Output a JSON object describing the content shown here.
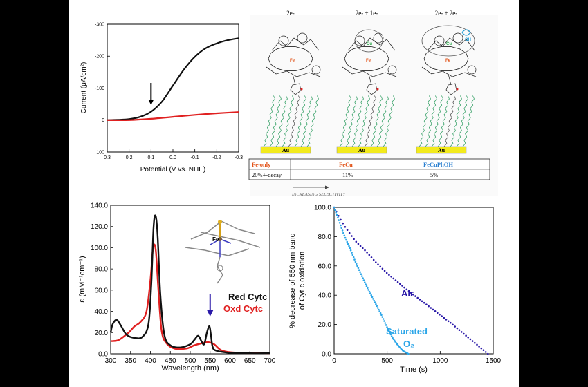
{
  "chart_data": [
    {
      "id": "lsv",
      "type": "line",
      "xlabel": "Potential (V vs. NHE)",
      "ylabel": "Current (μA/cm²)",
      "x_reversed": true,
      "y_reversed": true,
      "xlim": [
        0.3,
        -0.3
      ],
      "ylim": [
        100,
        -300
      ],
      "xticks": [
        "0.3",
        "0.2",
        "0.1",
        "0.0",
        "-0.1",
        "-0.2",
        "-0.3"
      ],
      "xtick_values": [
        0.3,
        0.2,
        0.1,
        0.0,
        -0.1,
        -0.2,
        -0.3
      ],
      "yticks": [
        "-300",
        "-200",
        "-100",
        "0",
        "100"
      ],
      "ytick_values": [
        -300,
        -200,
        -100,
        0,
        100
      ],
      "series": [
        {
          "color": "#111111",
          "x": [
            0.3,
            0.25,
            0.2,
            0.15,
            0.1,
            0.05,
            0.0,
            -0.05,
            -0.1,
            -0.15,
            -0.2,
            -0.25,
            -0.3
          ],
          "y": [
            0,
            -1,
            -3,
            -10,
            -26,
            -58,
            -108,
            -158,
            -198,
            -225,
            -240,
            -250,
            -256
          ]
        },
        {
          "color": "#e02020",
          "x": [
            0.3,
            0.2,
            0.1,
            0.0,
            -0.1,
            -0.2,
            -0.3
          ],
          "y": [
            0,
            0,
            -4,
            -10,
            -16,
            -21,
            -25
          ]
        }
      ],
      "annotation_arrow_x": 0.1
    },
    {
      "id": "uvvis",
      "type": "line",
      "xlabel": "Wavelength (nm)",
      "ylabel": "ε (mM⁻¹cm⁻¹)",
      "xlim": [
        300,
        700
      ],
      "ylim": [
        0,
        140
      ],
      "xticks": [
        "300",
        "350",
        "400",
        "450",
        "500",
        "550",
        "600",
        "650",
        "700"
      ],
      "xtick_values": [
        300,
        350,
        400,
        450,
        500,
        550,
        600,
        650,
        700
      ],
      "yticks": [
        "0.0",
        "20.0",
        "40.0",
        "60.0",
        "80.0",
        "100.0",
        "120.0",
        "140.0"
      ],
      "ytick_values": [
        0,
        20,
        40,
        60,
        80,
        100,
        120,
        140
      ],
      "series": [
        {
          "name": "Red Cytc",
          "color": "#111111",
          "x": [
            300,
            305,
            315,
            325,
            340,
            360,
            380,
            395,
            402,
            408,
            413,
            418,
            425,
            435,
            450,
            475,
            500,
            510,
            520,
            528,
            535,
            542,
            548,
            552,
            556,
            565,
            600,
            650,
            700
          ],
          "y": [
            20,
            28,
            32,
            27,
            18,
            15,
            16,
            28,
            65,
            120,
            130,
            112,
            55,
            18,
            8,
            6,
            9,
            13,
            17,
            12,
            9,
            20,
            26,
            18,
            7,
            3,
            1,
            0.5,
            0.5
          ]
        },
        {
          "name": "Oxd Cytc",
          "color": "#e02020",
          "x": [
            300,
            320,
            345,
            360,
            375,
            390,
            400,
            406,
            410,
            414,
            420,
            428,
            440,
            460,
            490,
            510,
            530,
            545,
            560,
            580,
            620,
            700
          ],
          "y": [
            12,
            13,
            20,
            26,
            30,
            40,
            70,
            98,
            103,
            95,
            60,
            22,
            10,
            5,
            5,
            8,
            10,
            11,
            9,
            3,
            1,
            0.5
          ]
        }
      ],
      "legend": [
        "Red Cytc",
        "Oxd Cytc"
      ],
      "annotation_arrow_x": 550
    },
    {
      "id": "kinetics",
      "type": "scatter",
      "xlabel": "Time (s)",
      "ylabel_lines": [
        "% decrease of 550 nm band",
        "of Cyt c oxidation"
      ],
      "xlim": [
        0,
        1500
      ],
      "ylim": [
        0,
        100
      ],
      "xticks": [
        "0",
        "500",
        "1000",
        "1500"
      ],
      "xtick_values": [
        0,
        500,
        1000,
        1500
      ],
      "yticks": [
        "0.0",
        "20.0",
        "40.0",
        "60.0",
        "80.0",
        "100.0"
      ],
      "ytick_values": [
        0,
        20,
        40,
        60,
        80,
        100
      ],
      "series": [
        {
          "name": "Air",
          "color": "#2a19a8",
          "x": [
            0,
            50,
            100,
            200,
            300,
            400,
            500,
            700,
            900,
            1100,
            1300,
            1450
          ],
          "y": [
            100,
            93,
            87,
            77,
            70,
            62,
            55,
            43,
            32,
            21,
            9,
            0
          ]
        },
        {
          "name": "Saturated O₂",
          "color": "#2ca6e8",
          "x": [
            0,
            50,
            100,
            150,
            200,
            250,
            300,
            350,
            400,
            450,
            500,
            550,
            600,
            650,
            700
          ],
          "y": [
            100,
            90,
            80,
            72,
            63,
            55,
            47,
            40,
            33,
            26,
            18,
            11,
            6,
            2,
            0
          ]
        }
      ],
      "labels": {
        "air": "Air",
        "o2_line1": "Saturated",
        "o2_line2": "O₂"
      }
    }
  ],
  "schematic": {
    "headers": [
      "2e-",
      "2e- + 1e-",
      "2e- + 2e-"
    ],
    "substrate": "Au",
    "metal_labels": [
      "Fe",
      "Cu",
      "OH"
    ],
    "table": {
      "catalysts": [
        "Fe-only",
        "FeCu",
        "FeCuPhOH"
      ],
      "decay": [
        "20%+-decay",
        "11%",
        "5%"
      ]
    },
    "arrow_text": "INCREASING SELECTIVITY"
  },
  "colors": {
    "black_curve": "#111111",
    "red_curve": "#e02020",
    "air": "#2a19a8",
    "o2": "#2ca6e8",
    "au_pad": "#f2ea1c",
    "chain": "#3aa36a"
  },
  "inset_label": "Fe"
}
